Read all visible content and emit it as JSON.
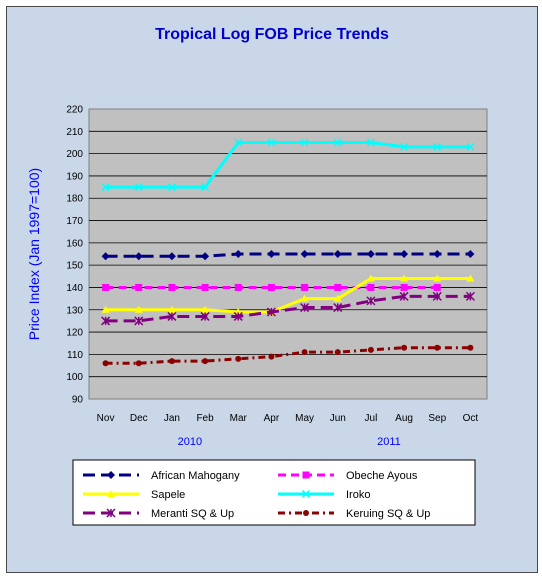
{
  "chart_data": {
    "type": "line",
    "title": "Tropical Log FOB Price Trends",
    "xlabel": "",
    "ylabel": "Price Index (Jan 1997=100)",
    "ylim": [
      90,
      220
    ],
    "yticks": [
      90,
      100,
      110,
      120,
      130,
      140,
      150,
      160,
      170,
      180,
      190,
      200,
      210,
      220
    ],
    "categories": [
      "Nov",
      "Dec",
      "Jan",
      "Feb",
      "Mar",
      "Apr",
      "May",
      "Jun",
      "Jul",
      "Aug",
      "Sep",
      "Oct"
    ],
    "year_labels": [
      {
        "text": "2010",
        "category": "Jan"
      },
      {
        "text": "2011",
        "category": "Jul"
      }
    ],
    "grid": "horizontal",
    "legend_position": "bottom",
    "series": [
      {
        "name": "African Mahogany",
        "color": "#000080",
        "dash": "long-dash",
        "marker": "diamond",
        "values": [
          154,
          154,
          154,
          154,
          155,
          155,
          155,
          155,
          155,
          155,
          155,
          155
        ]
      },
      {
        "name": "Obeche Ayous",
        "color": "#ff00ff",
        "dash": "dash",
        "marker": "square",
        "values": [
          140,
          140,
          140,
          140,
          140,
          140,
          140,
          140,
          140,
          140,
          140,
          null
        ]
      },
      {
        "name": "Sapele",
        "color": "#ffff00",
        "dash": "solid",
        "marker": "triangle",
        "values": [
          130,
          130,
          130,
          130,
          129,
          129,
          135,
          135,
          144,
          144,
          144,
          144
        ]
      },
      {
        "name": "Iroko",
        "color": "#00ffff",
        "dash": "solid",
        "marker": "x",
        "values": [
          185,
          185,
          185,
          185,
          205,
          205,
          205,
          205,
          205,
          203,
          203,
          203
        ]
      },
      {
        "name": "Meranti SQ & Up",
        "color": "#800080",
        "dash": "long-dash",
        "marker": "asterisk",
        "values": [
          125,
          125,
          127,
          127,
          127,
          129,
          131,
          131,
          134,
          136,
          136,
          136
        ]
      },
      {
        "name": "Keruing SQ & Up",
        "color": "#8b0000",
        "dash": "dot-dash",
        "marker": "circle",
        "values": [
          106,
          106,
          107,
          107,
          108,
          109,
          111,
          111,
          112,
          113,
          113,
          113
        ]
      }
    ]
  }
}
